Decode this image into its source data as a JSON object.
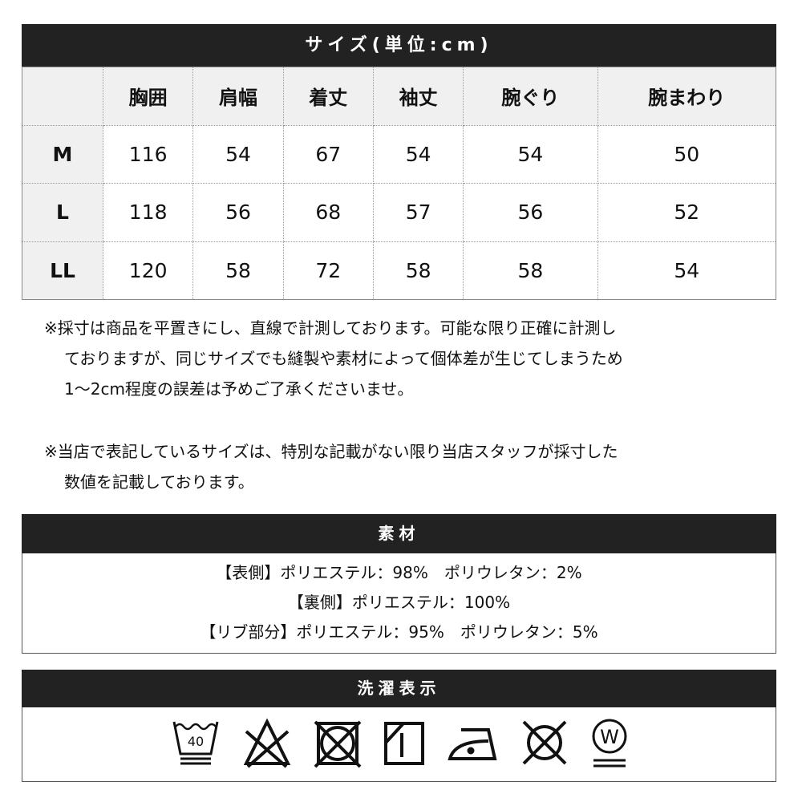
{
  "size_table": {
    "title": "サイズ(単位:cm)",
    "columns": [
      "胸囲",
      "肩幅",
      "着丈",
      "袖丈",
      "腕ぐり",
      "腕まわり"
    ],
    "rows": [
      {
        "size": "M",
        "values": [
          "116",
          "54",
          "67",
          "54",
          "54",
          "50"
        ]
      },
      {
        "size": "L",
        "values": [
          "118",
          "56",
          "68",
          "57",
          "56",
          "52"
        ]
      },
      {
        "size": "LL",
        "values": [
          "120",
          "58",
          "72",
          "58",
          "58",
          "54"
        ]
      }
    ]
  },
  "notes": [
    [
      "※採寸は商品を平置きにし、直線で計測しております。可能な限り正確に計測し",
      "ておりますが、同じサイズでも縫製や素材によって個体差が生じてしまうため",
      "1～2cm程度の誤差は予めご了承くださいませ。"
    ],
    [
      "※当店で表記しているサイズは、特別な記載がない限り当店スタッフが採寸した",
      "数値を記載しております。"
    ]
  ],
  "material": {
    "title": "素材",
    "lines": [
      "【表側】ポリエステル：98%　ポリウレタン：2%",
      "【裏側】ポリエステル：100%",
      "【リブ部分】ポリエステル：95%　ポリウレタン：5%"
    ]
  },
  "care": {
    "title": "洗濯表示",
    "icons": [
      "wash-40-gentle-icon",
      "no-bleach-icon",
      "no-tumble-dry-icon",
      "line-dry-shade-icon",
      "iron-low-icon",
      "no-dry-clean-icon",
      "wet-clean-gentle-icon"
    ],
    "wash_temp": "40",
    "wet_label": "W"
  }
}
